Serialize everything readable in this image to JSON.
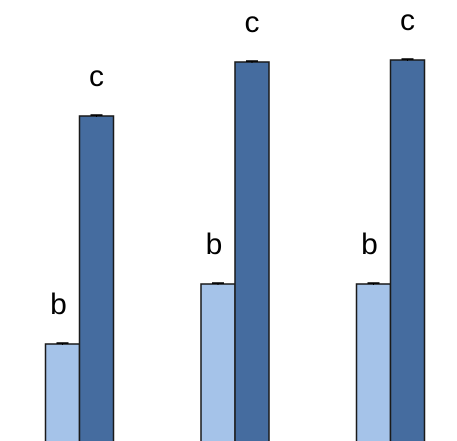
{
  "chart_data": {
    "type": "bar",
    "categories": [
      null,
      null,
      null
    ],
    "series": [
      {
        "color": "#a5c3e9",
        "values": [
          97,
          157,
          157
        ],
        "errors": [
          1,
          1,
          1
        ],
        "value_labels": [
          "b",
          "b",
          "b"
        ]
      },
      {
        "color": "#456c9f",
        "values": [
          325,
          379,
          381
        ],
        "errors": [
          1,
          1,
          1
        ],
        "value_labels": [
          "c",
          "c",
          "c"
        ]
      }
    ],
    "ylim": [
      0,
      441
    ]
  }
}
